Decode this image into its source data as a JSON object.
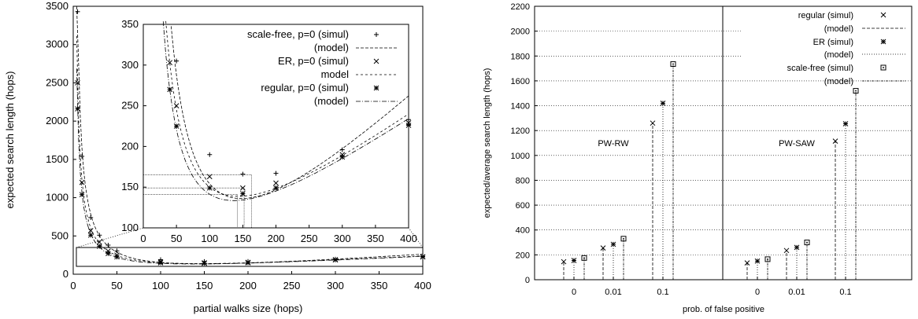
{
  "chart_data": [
    {
      "type": "scatter",
      "xlabel": "partial walks size (hops)",
      "ylabel": "expected search length (hops)",
      "xlim": [
        0,
        400
      ],
      "ylim": [
        0,
        3500
      ],
      "xticks": [
        0,
        50,
        100,
        150,
        200,
        250,
        300,
        350,
        400
      ],
      "yticks": [
        0,
        500,
        1000,
        1500,
        2000,
        2500,
        3000,
        3500
      ],
      "grid": false,
      "series": [
        {
          "name": "scale-free, p=0 (simul)",
          "marker": "plus",
          "x": [
            5,
            10,
            20,
            30,
            40,
            50,
            100,
            150,
            200,
            300,
            400
          ],
          "y": [
            3430,
            1540,
            740,
            510,
            380,
            305,
            190,
            166,
            167,
            196,
            233
          ]
        },
        {
          "name": "ER, p=0 (simul)",
          "marker": "cross",
          "x": [
            5,
            10,
            20,
            30,
            40,
            50,
            100,
            150,
            200,
            300,
            400
          ],
          "y": [
            2500,
            1200,
            570,
            420,
            303,
            250,
            163,
            149,
            155,
            190,
            229
          ]
        },
        {
          "name": "regular, p=0 (simul)",
          "marker": "star",
          "x": [
            5,
            10,
            20,
            30,
            40,
            50,
            100,
            150,
            200,
            300,
            400
          ],
          "y": [
            2160,
            1040,
            510,
            365,
            270,
            225,
            149,
            142,
            149,
            187,
            226
          ]
        }
      ],
      "model_legend": [
        "(model)",
        "model",
        "(model)"
      ],
      "inset": {
        "xlim": [
          0,
          400
        ],
        "ylim": [
          100,
          350
        ],
        "xticks": [
          0,
          50,
          100,
          150,
          200,
          250,
          300,
          350,
          400
        ],
        "yticks": [
          100,
          150,
          200,
          250,
          300,
          350
        ],
        "minima": [
          {
            "x": 163,
            "y": 165
          },
          {
            "x": 152,
            "y": 149
          },
          {
            "x": 142,
            "y": 141
          }
        ]
      }
    },
    {
      "type": "bar",
      "ylabel": "expected/average search length (hops)",
      "xlabel": "prob. of false positive",
      "ylim": [
        0,
        2200
      ],
      "yticks": [
        0,
        200,
        400,
        600,
        800,
        1000,
        1200,
        1400,
        1600,
        1800,
        2000,
        2200
      ],
      "grid": "horizontal dotted",
      "categories": [
        "0",
        "0.01",
        "0.1",
        "0",
        "0.01",
        "0.1"
      ],
      "panels": [
        "PW-RW",
        "PW-SAW"
      ],
      "series": [
        {
          "name": "regular (simul)",
          "marker": "cross",
          "values": [
            145,
            255,
            1260,
            135,
            235,
            1115
          ]
        },
        {
          "name": "ER (simul)",
          "marker": "star",
          "values": [
            155,
            285,
            1420,
            150,
            260,
            1255
          ]
        },
        {
          "name": "scale-free (simul)",
          "marker": "square",
          "values": [
            175,
            330,
            1735,
            165,
            300,
            1520
          ]
        }
      ],
      "model_legend": [
        "(model)",
        "(model)",
        "(model)"
      ]
    }
  ]
}
